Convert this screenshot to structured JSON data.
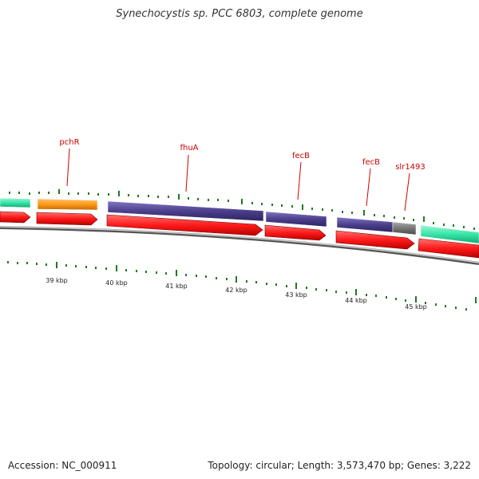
{
  "title": "Synechocystis sp. PCC 6803, complete genome",
  "footer": {
    "accession": "Accession: NC_000911",
    "summary": "Topology: circular; Length: 3,573,470 bp; Genes: 3,222"
  },
  "colors": {
    "backbone": "#8a8a8a",
    "cds": "#ff1a1a",
    "green": "#35e6a6",
    "orange": "#ff9a1a",
    "purple": "#4b3f8c",
    "gray": "#777777",
    "tick": "#1f7a1f",
    "label": "#cc0000"
  },
  "axis_labels": [
    "39 kbp",
    "40 kbp",
    "41 kbp",
    "42 kbp",
    "43 kbp",
    "44 kbp",
    "45 kbp"
  ],
  "gene_labels": [
    "pchR",
    "fhuA",
    "fecB",
    "fecB",
    "slr1493"
  ]
}
